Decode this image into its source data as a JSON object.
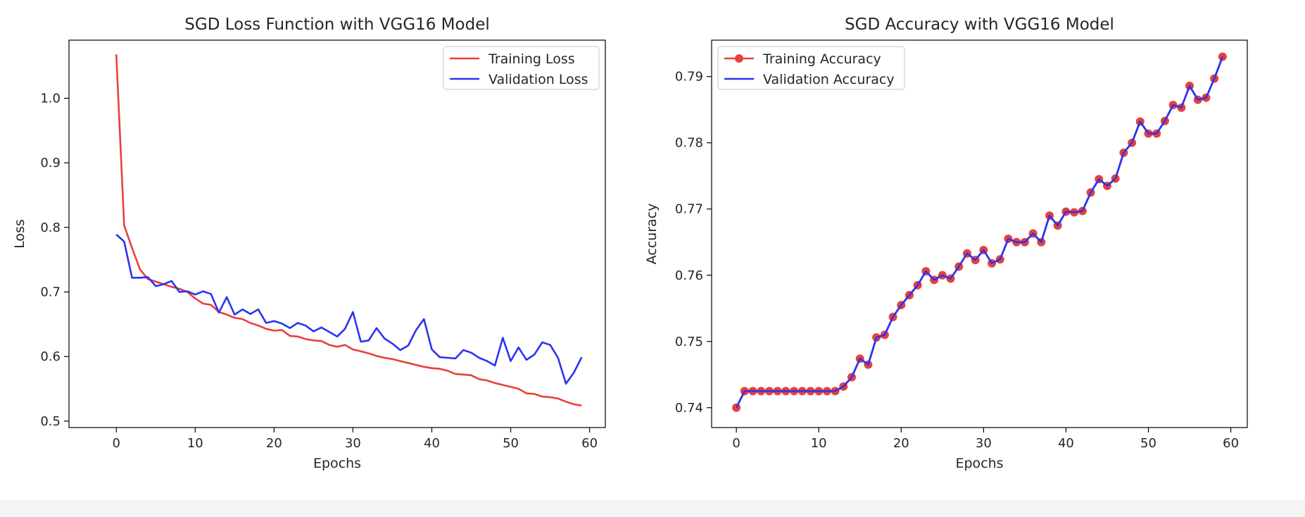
{
  "chart_data": [
    {
      "type": "line",
      "title": "SGD Loss Function with VGG16 Model",
      "xlabel": "Epochs",
      "ylabel": "Loss",
      "xlim": [
        -6,
        62
      ],
      "ylim": [
        0.49,
        1.09
      ],
      "xticks": [
        0,
        10,
        20,
        30,
        40,
        50,
        60
      ],
      "yticks": [
        0.5,
        0.6,
        0.7,
        0.8,
        0.9,
        1.0
      ],
      "ytick_labels": [
        "0.5",
        "0.6",
        "0.7",
        "0.8",
        "0.9",
        "1.0"
      ],
      "grid": false,
      "legend_position": "top-right",
      "series": [
        {
          "name": "Training Loss",
          "color": "#e8403c",
          "marker": false,
          "x": [
            0,
            1,
            2,
            3,
            4,
            5,
            6,
            7,
            8,
            9,
            10,
            11,
            12,
            13,
            14,
            15,
            16,
            17,
            18,
            19,
            20,
            21,
            22,
            23,
            24,
            25,
            26,
            27,
            28,
            29,
            30,
            31,
            32,
            33,
            34,
            35,
            36,
            37,
            38,
            39,
            40,
            41,
            42,
            43,
            44,
            45,
            46,
            47,
            48,
            49,
            50,
            51,
            52,
            53,
            54,
            55,
            56,
            57,
            58,
            59
          ],
          "values": [
            1.068,
            0.803,
            0.768,
            0.735,
            0.72,
            0.716,
            0.712,
            0.708,
            0.705,
            0.7,
            0.69,
            0.682,
            0.68,
            0.669,
            0.665,
            0.66,
            0.658,
            0.652,
            0.648,
            0.643,
            0.64,
            0.641,
            0.632,
            0.631,
            0.627,
            0.625,
            0.624,
            0.618,
            0.615,
            0.618,
            0.611,
            0.608,
            0.605,
            0.601,
            0.598,
            0.596,
            0.593,
            0.59,
            0.587,
            0.584,
            0.582,
            0.581,
            0.578,
            0.573,
            0.572,
            0.571,
            0.565,
            0.563,
            0.559,
            0.556,
            0.553,
            0.55,
            0.543,
            0.542,
            0.538,
            0.537,
            0.535,
            0.53,
            0.526,
            0.524
          ]
        },
        {
          "name": "Validation Loss",
          "color": "#2b34f0",
          "marker": false,
          "x": [
            0,
            1,
            2,
            3,
            4,
            5,
            6,
            7,
            8,
            9,
            10,
            11,
            12,
            13,
            14,
            15,
            16,
            17,
            18,
            19,
            20,
            21,
            22,
            23,
            24,
            25,
            26,
            27,
            28,
            29,
            30,
            31,
            32,
            33,
            34,
            35,
            36,
            37,
            38,
            39,
            40,
            41,
            42,
            43,
            44,
            45,
            46,
            47,
            48,
            49,
            50,
            51,
            52,
            53,
            54,
            55,
            56,
            57,
            58,
            59
          ],
          "values": [
            0.789,
            0.778,
            0.722,
            0.722,
            0.723,
            0.709,
            0.712,
            0.717,
            0.7,
            0.701,
            0.696,
            0.701,
            0.697,
            0.668,
            0.692,
            0.665,
            0.673,
            0.666,
            0.673,
            0.652,
            0.655,
            0.651,
            0.644,
            0.652,
            0.648,
            0.639,
            0.645,
            0.638,
            0.631,
            0.643,
            0.669,
            0.623,
            0.625,
            0.644,
            0.628,
            0.62,
            0.61,
            0.617,
            0.641,
            0.658,
            0.611,
            0.599,
            0.598,
            0.597,
            0.61,
            0.606,
            0.598,
            0.593,
            0.586,
            0.629,
            0.593,
            0.614,
            0.595,
            0.603,
            0.622,
            0.618,
            0.598,
            0.558,
            0.575,
            0.599
          ]
        }
      ]
    },
    {
      "type": "line",
      "title": "SGD Accuracy with VGG16 Model",
      "xlabel": "Epochs",
      "ylabel": "Accuracy",
      "xlim": [
        -3,
        62
      ],
      "ylim": [
        0.737,
        0.7955
      ],
      "xticks": [
        0,
        10,
        20,
        30,
        40,
        50,
        60
      ],
      "yticks": [
        0.74,
        0.75,
        0.76,
        0.77,
        0.78,
        0.79
      ],
      "ytick_labels": [
        "0.74",
        "0.75",
        "0.76",
        "0.77",
        "0.78",
        "0.79"
      ],
      "grid": false,
      "legend_position": "top-left",
      "series": [
        {
          "name": "Training Accuracy",
          "color": "#e8403c",
          "marker": true,
          "x": [
            0,
            1,
            2,
            3,
            4,
            5,
            6,
            7,
            8,
            9,
            10,
            11,
            12,
            13,
            14,
            15,
            16,
            17,
            18,
            19,
            20,
            21,
            22,
            23,
            24,
            25,
            26,
            27,
            28,
            29,
            30,
            31,
            32,
            33,
            34,
            35,
            36,
            37,
            38,
            39,
            40,
            41,
            42,
            43,
            44,
            45,
            46,
            47,
            48,
            49,
            50,
            51,
            52,
            53,
            54,
            55,
            56,
            57,
            58,
            59
          ],
          "values": [
            0.74,
            0.7425,
            0.7425,
            0.7425,
            0.7425,
            0.7425,
            0.7425,
            0.7425,
            0.7425,
            0.7425,
            0.7425,
            0.7425,
            0.7425,
            0.7432,
            0.7446,
            0.7474,
            0.7465,
            0.7506,
            0.751,
            0.7537,
            0.7555,
            0.757,
            0.7585,
            0.7606,
            0.7593,
            0.76,
            0.7595,
            0.7613,
            0.7633,
            0.7623,
            0.7638,
            0.7618,
            0.7624,
            0.7655,
            0.765,
            0.765,
            0.7663,
            0.765,
            0.769,
            0.7675,
            0.7696,
            0.7695,
            0.7697,
            0.7725,
            0.7745,
            0.7735,
            0.7746,
            0.7785,
            0.78,
            0.7832,
            0.7814,
            0.7814,
            0.7833,
            0.7857,
            0.7853,
            0.7886,
            0.7865,
            0.7868,
            0.7897,
            0.793
          ]
        },
        {
          "name": "Validation Accuracy",
          "color": "#2b34f0",
          "marker": false,
          "x": [
            0,
            1,
            2,
            3,
            4,
            5,
            6,
            7,
            8,
            9,
            10,
            11,
            12,
            13,
            14,
            15,
            16,
            17,
            18,
            19,
            20,
            21,
            22,
            23,
            24,
            25,
            26,
            27,
            28,
            29,
            30,
            31,
            32,
            33,
            34,
            35,
            36,
            37,
            38,
            39,
            40,
            41,
            42,
            43,
            44,
            45,
            46,
            47,
            48,
            49,
            50,
            51,
            52,
            53,
            54,
            55,
            56,
            57,
            58,
            59
          ],
          "values": [
            0.74,
            0.7425,
            0.7425,
            0.7425,
            0.7425,
            0.7425,
            0.7425,
            0.7425,
            0.7425,
            0.7425,
            0.7425,
            0.7425,
            0.7425,
            0.7432,
            0.7446,
            0.7474,
            0.7465,
            0.7506,
            0.751,
            0.7537,
            0.7555,
            0.757,
            0.7585,
            0.7606,
            0.7593,
            0.76,
            0.7595,
            0.7613,
            0.7633,
            0.7623,
            0.7638,
            0.7618,
            0.7624,
            0.7655,
            0.765,
            0.765,
            0.7663,
            0.765,
            0.769,
            0.7675,
            0.7696,
            0.7695,
            0.7697,
            0.7725,
            0.7745,
            0.7735,
            0.7746,
            0.7785,
            0.78,
            0.7832,
            0.7814,
            0.7814,
            0.7833,
            0.7857,
            0.7853,
            0.7886,
            0.7865,
            0.7868,
            0.7897,
            0.793
          ]
        }
      ]
    }
  ]
}
